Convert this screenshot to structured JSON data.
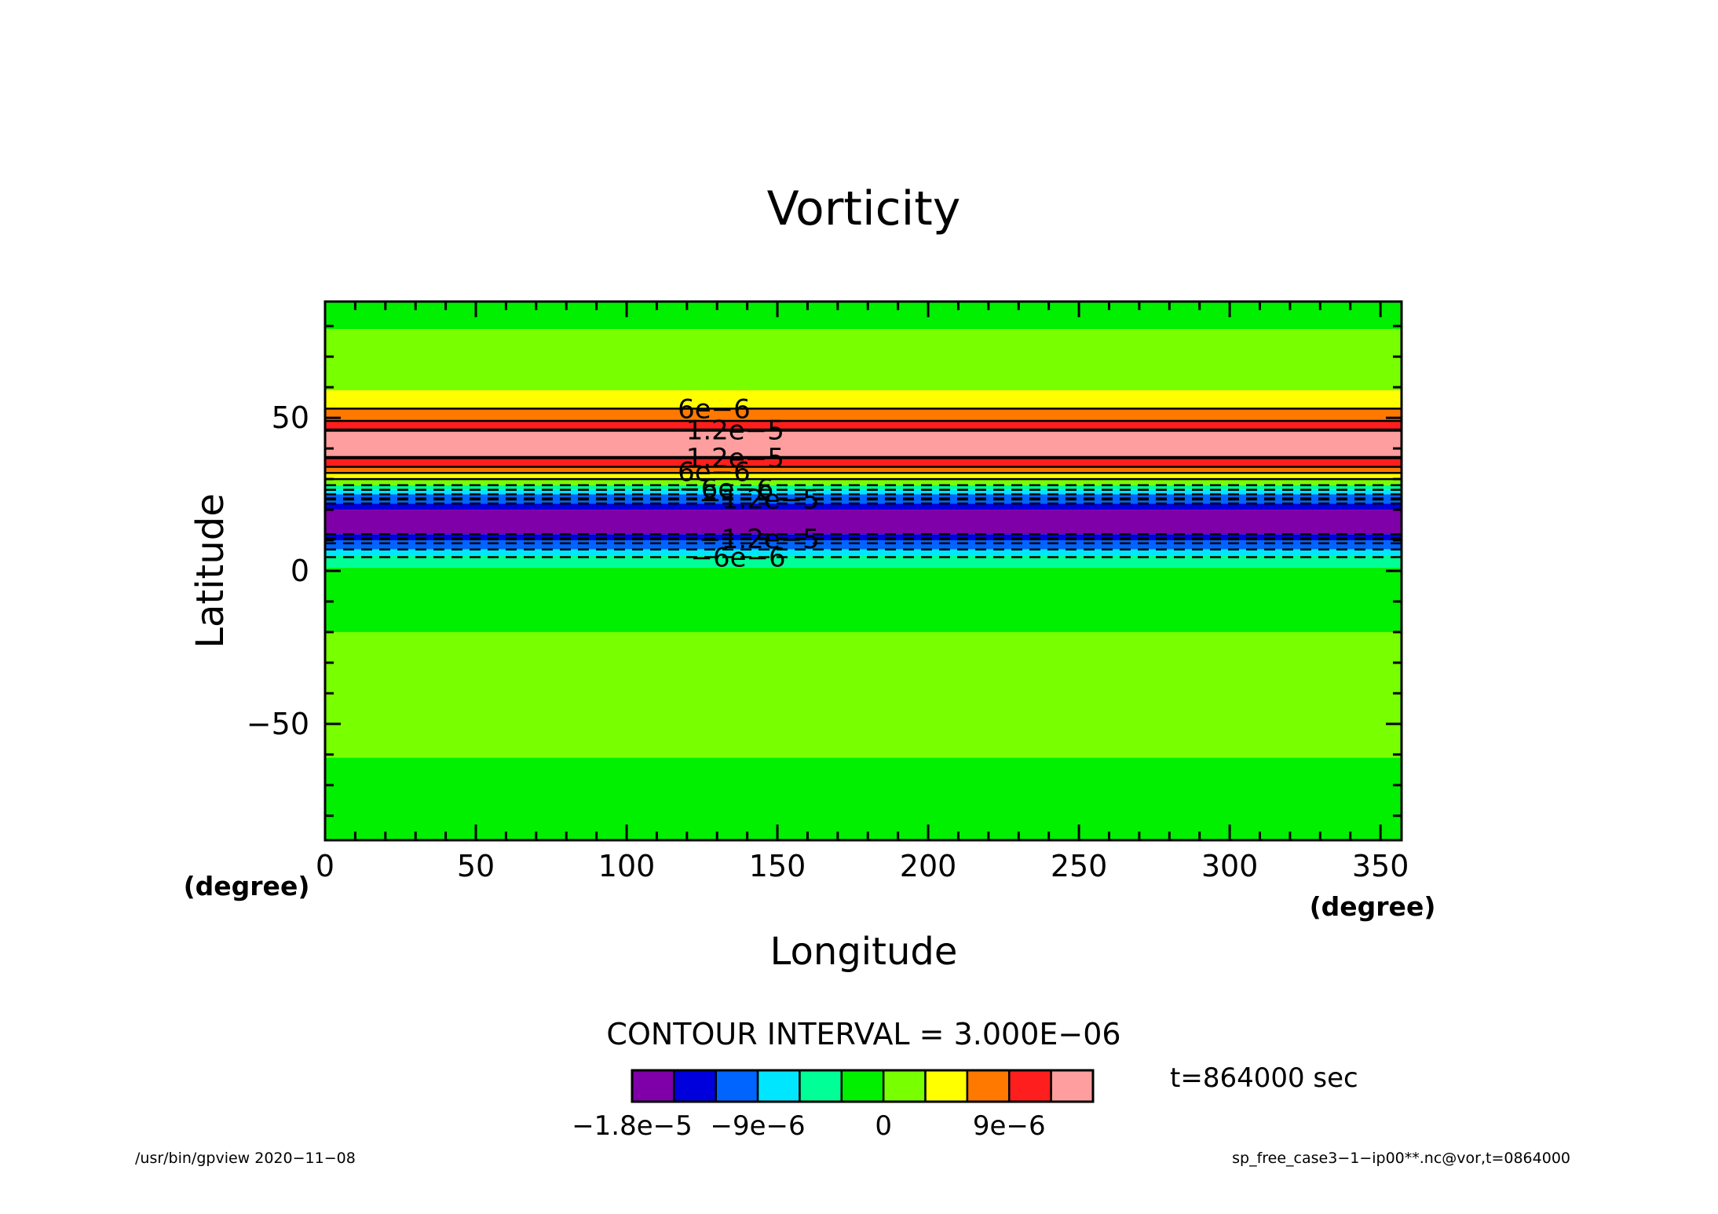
{
  "chart_data": {
    "type": "heatmap",
    "title": "Vorticity",
    "xlabel": "Longitude",
    "ylabel": "Latitude",
    "x_unit": "(degree)",
    "y_unit": "(degree)",
    "xlim": [
      0,
      357
    ],
    "ylim": [
      -88,
      88
    ],
    "xticks": [
      "0",
      "50",
      "100",
      "150",
      "200",
      "250",
      "300",
      "350"
    ],
    "yticks": [
      "−50",
      "0",
      "50"
    ],
    "contour_interval_text": "CONTOUR INTERVAL = 3.000E−06",
    "time_text": "t=864000 sec",
    "levels": [
      -1.8e-05,
      -1.5e-05,
      -1.2e-05,
      -9e-06,
      -6e-06,
      -3e-06,
      0,
      3e-06,
      6e-06,
      9e-06,
      1.2e-05,
      1.5e-05
    ],
    "colors": [
      "#7F00A8",
      "#0000DC",
      "#0064FF",
      "#00E6FF",
      "#00FF96",
      "#00F000",
      "#78FF00",
      "#FFFF00",
      "#FF7800",
      "#FF1E1E",
      "#FF9E9E"
    ],
    "colorbar_labels": [
      "−1.8e−5",
      "−9e−6",
      "0",
      "9e−6"
    ],
    "bands": [
      {
        "lat": [
          79,
          88
        ],
        "color": "#00F000"
      },
      {
        "lat": [
          59,
          79
        ],
        "color": "#78FF00"
      },
      {
        "lat": [
          53,
          59
        ],
        "color": "#FFFF00"
      },
      {
        "lat": [
          49,
          53
        ],
        "color": "#FF7800"
      },
      {
        "lat": [
          46,
          49
        ],
        "color": "#FF1E1E"
      },
      {
        "lat": [
          37,
          46
        ],
        "color": "#FF9E9E"
      },
      {
        "lat": [
          34,
          37
        ],
        "color": "#FF1E1E"
      },
      {
        "lat": [
          32,
          34
        ],
        "color": "#FF7800"
      },
      {
        "lat": [
          30,
          32
        ],
        "color": "#FFFF00"
      },
      {
        "lat": [
          28,
          30
        ],
        "color": "#78FF00"
      },
      {
        "lat": [
          26.5,
          28
        ],
        "color": "#00FF96"
      },
      {
        "lat": [
          25,
          26.5
        ],
        "color": "#00E6FF"
      },
      {
        "lat": [
          22,
          25
        ],
        "color": "#0064FF"
      },
      {
        "lat": [
          20,
          22
        ],
        "color": "#0000DC"
      },
      {
        "lat": [
          12,
          20
        ],
        "color": "#7F00A8"
      },
      {
        "lat": [
          10,
          12
        ],
        "color": "#0000DC"
      },
      {
        "lat": [
          7,
          10
        ],
        "color": "#0064FF"
      },
      {
        "lat": [
          5,
          7
        ],
        "color": "#00E6FF"
      },
      {
        "lat": [
          1,
          5
        ],
        "color": "#00FF96"
      },
      {
        "lat": [
          -20,
          1
        ],
        "color": "#00F000"
      },
      {
        "lat": [
          -61,
          -20
        ],
        "color": "#78FF00"
      },
      {
        "lat": [
          -88,
          -61
        ],
        "color": "#00F000"
      }
    ],
    "contours": [
      {
        "lat": 53,
        "dashed": false,
        "bold": false
      },
      {
        "lat": 49,
        "dashed": false,
        "bold": false
      },
      {
        "lat": 46,
        "dashed": false,
        "bold": true
      },
      {
        "lat": 37,
        "dashed": false,
        "bold": true
      },
      {
        "lat": 34,
        "dashed": false,
        "bold": false
      },
      {
        "lat": 32,
        "dashed": false,
        "bold": false
      },
      {
        "lat": 30,
        "dashed": false,
        "bold": false
      },
      {
        "lat": 28,
        "dashed": true,
        "bold": false
      },
      {
        "lat": 26.5,
        "dashed": true,
        "bold": false
      },
      {
        "lat": 25,
        "dashed": true,
        "bold": false
      },
      {
        "lat": 23.5,
        "dashed": true,
        "bold": true
      },
      {
        "lat": 22,
        "dashed": true,
        "bold": false
      },
      {
        "lat": 12,
        "dashed": true,
        "bold": false
      },
      {
        "lat": 10.5,
        "dashed": true,
        "bold": true
      },
      {
        "lat": 9,
        "dashed": true,
        "bold": false
      },
      {
        "lat": 7,
        "dashed": true,
        "bold": false
      },
      {
        "lat": 4.5,
        "dashed": true,
        "bold": false
      }
    ],
    "contour_labels": [
      {
        "text": "6e−6",
        "lon": 129,
        "lat": 53
      },
      {
        "text": "1.2e−5",
        "lon": 136,
        "lat": 46
      },
      {
        "text": "1.2e−5",
        "lon": 136,
        "lat": 37
      },
      {
        "text": "6e−6",
        "lon": 129,
        "lat": 32.5
      },
      {
        "text": "−6e−6",
        "lon": 133,
        "lat": 27
      },
      {
        "text": "−1.2e−5",
        "lon": 144,
        "lat": 23.5
      },
      {
        "text": "−1.2e−5",
        "lon": 144,
        "lat": 10.5
      },
      {
        "text": "−6e−6",
        "lon": 137,
        "lat": 4.5
      }
    ]
  },
  "footer": {
    "left": "/usr/bin/gpview   2020−11−08",
    "right": "sp_free_case3−1−ip00**.nc@vor,t=0864000"
  }
}
